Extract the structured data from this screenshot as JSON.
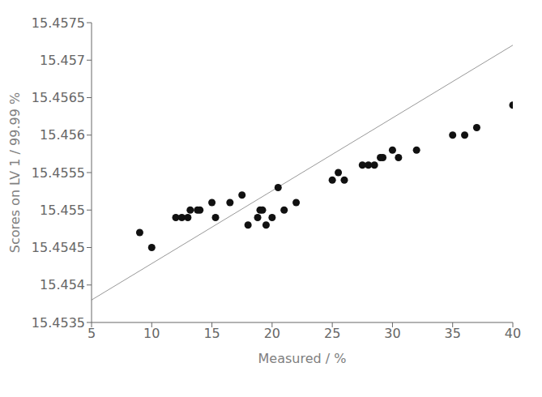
{
  "chart_data": {
    "type": "scatter",
    "xlabel": "Measured / %",
    "ylabel": "Scores on LV 1 / 99.99 %",
    "xlim": [
      5,
      40
    ],
    "xticks": [
      5,
      10,
      15,
      20,
      25,
      30,
      35,
      40
    ],
    "ylim": [
      15.4535,
      15.4575
    ],
    "yticks": [
      15.4535,
      15.454,
      15.4545,
      15.455,
      15.4555,
      15.456,
      15.4565,
      15.457,
      15.4575
    ],
    "grid": false,
    "series": [
      {
        "type": "line",
        "color": "#999999",
        "x": [
          5,
          40
        ],
        "values": [
          15.4538,
          15.4572
        ]
      },
      {
        "type": "scatter",
        "color": "#111111",
        "x": [
          9.0,
          10.0,
          12.0,
          12.5,
          13.0,
          13.2,
          13.8,
          14.0,
          15.0,
          15.3,
          16.5,
          17.5,
          18.0,
          18.8,
          19.0,
          19.2,
          19.5,
          20.0,
          20.5,
          21.0,
          22.0,
          25.0,
          25.5,
          26.0,
          27.5,
          28.0,
          28.5,
          29.0,
          29.2,
          30.0,
          30.5,
          32.0,
          35.0,
          36.0,
          37.0,
          40.0
        ],
        "values": [
          15.4547,
          15.4545,
          15.4549,
          15.4549,
          15.4549,
          15.455,
          15.455,
          15.455,
          15.4551,
          15.4549,
          15.4551,
          15.4552,
          15.4548,
          15.4549,
          15.455,
          15.455,
          15.4548,
          15.4549,
          15.4553,
          15.455,
          15.4551,
          15.4554,
          15.4555,
          15.4554,
          15.4556,
          15.4556,
          15.4556,
          15.4557,
          15.4557,
          15.4558,
          15.4557,
          15.4558,
          15.456,
          15.456,
          15.4561,
          15.4564
        ]
      }
    ]
  }
}
